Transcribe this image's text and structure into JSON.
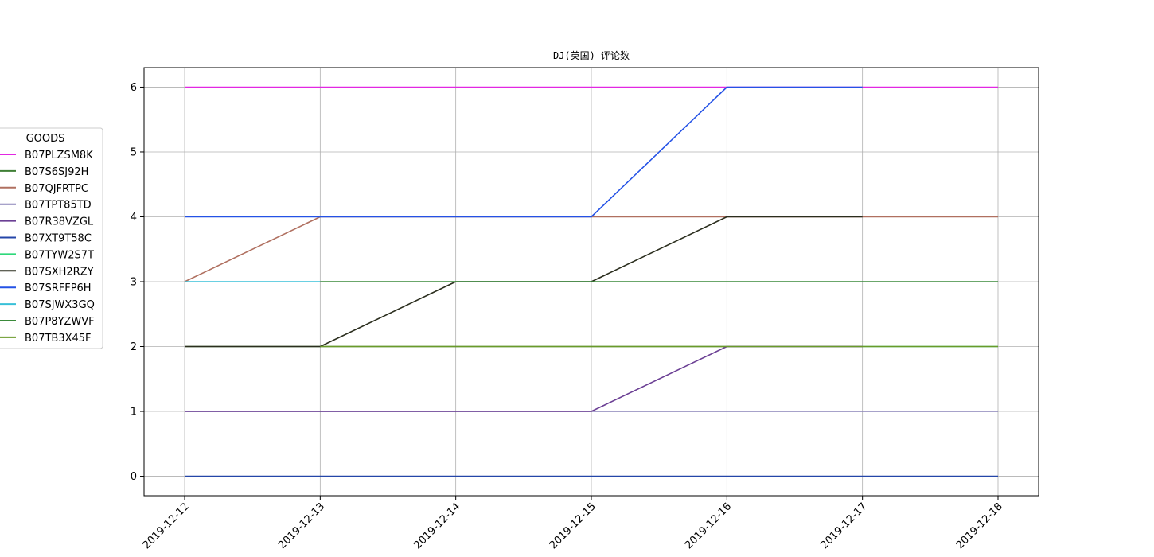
{
  "chart_data": {
    "type": "line",
    "title": "DJ(英国) 评论数",
    "xlabel": "",
    "ylabel": "",
    "categories": [
      "2019-12-12",
      "2019-12-13",
      "2019-12-14",
      "2019-12-15",
      "2019-12-16",
      "2019-12-17",
      "2019-12-18"
    ],
    "ylim": [
      -0.3,
      6.3
    ],
    "yticks": [
      "0",
      "1",
      "2",
      "3",
      "4",
      "5",
      "6"
    ],
    "grid": true,
    "legend": {
      "title": "GOODS",
      "placement": "left-outside"
    },
    "series": [
      {
        "name": "B07PLZSM8K",
        "color": "#e228e2",
        "values": [
          6,
          6,
          6,
          6,
          6,
          6,
          6
        ]
      },
      {
        "name": "B07S6SJ92H",
        "color": "#3f7f35",
        "values": [
          2,
          2,
          2,
          2,
          2,
          2,
          null
        ]
      },
      {
        "name": "B07QJFRTPC",
        "color": "#b07060",
        "values": [
          3,
          4,
          4,
          4,
          4,
          4,
          4
        ]
      },
      {
        "name": "B07TPT85TD",
        "color": "#8a84b8",
        "values": [
          1,
          1,
          1,
          1,
          1,
          1,
          1
        ]
      },
      {
        "name": "B07R38VZGL",
        "color": "#6b3f94",
        "values": [
          1,
          1,
          1,
          1,
          2,
          2,
          null
        ]
      },
      {
        "name": "B07XT9T58C",
        "color": "#2446a8",
        "values": [
          0,
          0,
          0,
          0,
          0,
          0,
          0
        ]
      },
      {
        "name": "B07TYW2S7T",
        "color": "#2ed87a",
        "values": [
          null,
          null,
          null,
          null,
          null,
          2,
          2
        ]
      },
      {
        "name": "B07SXH2RZY",
        "color": "#2b2e1e",
        "values": [
          2,
          2,
          3,
          3,
          4,
          4,
          null
        ]
      },
      {
        "name": "B07SRFFP6H",
        "color": "#2452e6",
        "values": [
          4,
          4,
          4,
          4,
          6,
          6,
          null
        ]
      },
      {
        "name": "B07SJWX3GQ",
        "color": "#38c0d8",
        "values": [
          3,
          3,
          null,
          null,
          null,
          null,
          null
        ]
      },
      {
        "name": "B07P8YZWVF",
        "color": "#3a8a3a",
        "values": [
          null,
          3,
          3,
          3,
          3,
          3,
          3
        ]
      },
      {
        "name": "B07TB3X45F",
        "color": "#6a9a2a",
        "values": [
          null,
          2,
          2,
          2,
          2,
          2,
          2
        ]
      }
    ]
  }
}
